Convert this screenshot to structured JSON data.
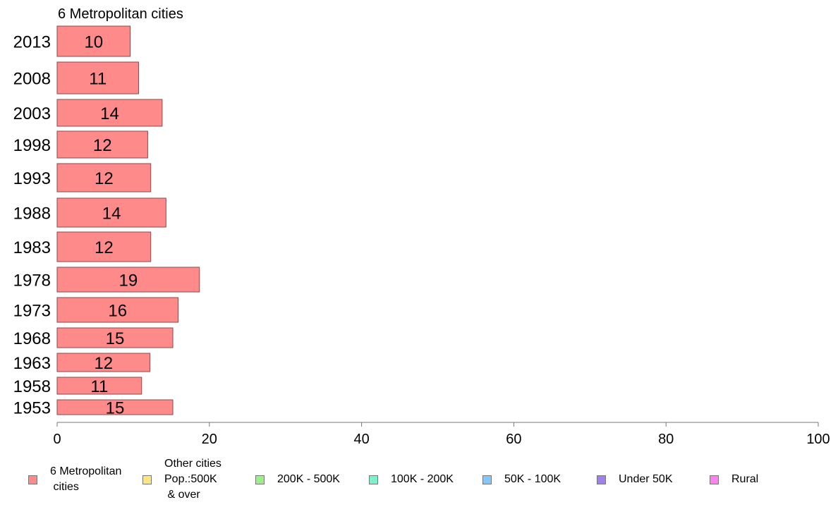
{
  "chart_data": {
    "type": "bar",
    "orientation": "horizontal",
    "title": "6 Metropolitan cities",
    "categories": [
      "2013",
      "2008",
      "2003",
      "1998",
      "1993",
      "1988",
      "1983",
      "1978",
      "1973",
      "1968",
      "1963",
      "1958",
      "1953"
    ],
    "values": [
      9.6,
      10.7,
      13.8,
      11.9,
      12.3,
      14.3,
      12.3,
      18.7,
      15.9,
      15.2,
      12.2,
      11.1,
      15.2
    ],
    "value_labels": [
      "10",
      "11",
      "14",
      "12",
      "12",
      "14",
      "12",
      "19",
      "16",
      "15",
      "12",
      "11",
      "15"
    ],
    "xlim": [
      0,
      100
    ],
    "xticks": [
      "0",
      "20",
      "40",
      "60",
      "80",
      "100"
    ],
    "bar_color": "#ff8a8a",
    "grid": false,
    "legend_position": "bottom",
    "legend": [
      {
        "label": "6 Metropolitan\n cities",
        "color": "#ff8a8a"
      },
      {
        "label": "Other cities\nPop.:500K\n & over",
        "color": "#ffe680"
      },
      {
        "label": "200K - 500K",
        "color": "#9bf08a"
      },
      {
        "label": "100K - 200K",
        "color": "#7ff0c8"
      },
      {
        "label": "50K - 100K",
        "color": "#80c8ff"
      },
      {
        "label": "Under 50K",
        "color": "#a080f0"
      },
      {
        "label": "Rural",
        "color": "#ff80f0"
      }
    ]
  }
}
